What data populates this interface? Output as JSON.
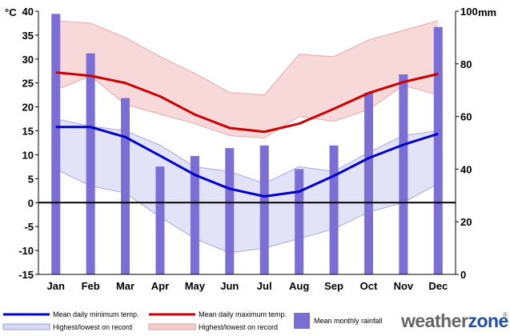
{
  "chart_data": {
    "type": "bar+line+area",
    "categories": [
      "Jan",
      "Feb",
      "Mar",
      "Apr",
      "May",
      "Jun",
      "Jul",
      "Aug",
      "Sep",
      "Oct",
      "Nov",
      "Dec"
    ],
    "left_axis": {
      "unit": "°C",
      "range": [
        -15,
        40
      ],
      "ticks": [
        40,
        35,
        30,
        25,
        20,
        15,
        10,
        5,
        0,
        -5,
        -10,
        -15
      ]
    },
    "right_axis": {
      "unit": "mm",
      "range": [
        0,
        100
      ],
      "ticks": [
        100,
        80,
        60,
        40,
        20,
        0
      ]
    },
    "series": [
      {
        "name": "Mean monthly rainfall",
        "type": "bar",
        "axis": "right",
        "color": "#7b6fd6",
        "values": [
          99,
          84,
          67,
          41,
          45,
          48,
          49,
          40,
          49,
          69,
          76,
          94
        ]
      },
      {
        "name": "Mean daily maximum temp.",
        "type": "line",
        "axis": "left",
        "color": "#cc0000",
        "values": [
          27.2,
          26.5,
          25.0,
          22.2,
          18.4,
          15.6,
          14.8,
          16.5,
          19.6,
          22.9,
          25.2,
          26.9
        ]
      },
      {
        "name": "Mean daily minimum temp.",
        "type": "line",
        "axis": "left",
        "color": "#0000cc",
        "values": [
          15.8,
          15.8,
          13.7,
          9.8,
          5.8,
          2.9,
          1.3,
          2.3,
          5.6,
          9.3,
          12.1,
          14.4
        ]
      },
      {
        "name": "Highest/lowest on record (max)",
        "type": "area",
        "axis": "left",
        "color": "#f5cccc",
        "upper": [
          38,
          37.5,
          34.5,
          30.5,
          27,
          23,
          22.5,
          31,
          30.5,
          34,
          36,
          38
        ],
        "lower": [
          23.5,
          26.5,
          20.5,
          18.5,
          16.5,
          14,
          13.5,
          18,
          17,
          19.5,
          24.5,
          22.5
        ]
      },
      {
        "name": "Highest/lowest on record (min)",
        "type": "area",
        "axis": "left",
        "color": "#d9d9f5",
        "upper": [
          17.5,
          16,
          15,
          12,
          7.5,
          6.5,
          4,
          7.5,
          6.5,
          10.5,
          14,
          15
        ],
        "lower": [
          7,
          3.5,
          2,
          -3,
          -7.5,
          -10.5,
          -9.5,
          -7.5,
          -5.5,
          -2,
          0,
          4
        ]
      }
    ],
    "legend": {
      "min_line": "Mean daily minimum temp.",
      "max_line": "Mean daily maximum temp.",
      "min_record": "Highest/lowest on record",
      "max_record": "Highest/lowest on record",
      "rain": "Mean monthly rainfall"
    },
    "brand": {
      "word": "weatherzone",
      "part1": "weather",
      "part2": "zone",
      "symbol": "®"
    }
  }
}
